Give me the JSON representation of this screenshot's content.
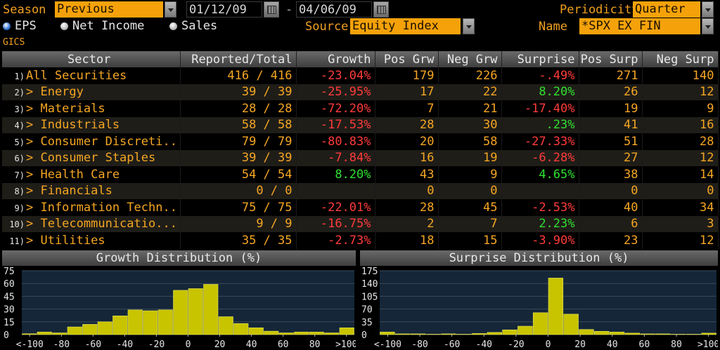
{
  "controls": {
    "season_label": "Season",
    "season_value": "Previous",
    "date_from": "01/12/09",
    "date_sep": "-",
    "date_to": "04/06/09",
    "periodicity_label": "Periodicity",
    "periodicity_value": "Quarter",
    "radio_eps": "EPS",
    "radio_net_income": "Net Income",
    "radio_sales": "Sales",
    "source_label": "Source",
    "source_value": "Equity Index",
    "name_label": "Name",
    "name_value": "*SPX EX FIN",
    "gics_label": "GICS"
  },
  "table": {
    "headers": [
      "Sector",
      "Reported/Total",
      "Growth",
      "Pos Grw",
      "Neg Grw",
      "Surprise",
      "Pos Surp",
      "Neg Surp"
    ],
    "rows": [
      {
        "n": "1)",
        "sector": "All Securities",
        "reported": "416 / 416",
        "growth": "-23.04%",
        "pos_grw": "179",
        "neg_grw": "226",
        "surprise": "-.49%",
        "pos_surp": "271",
        "neg_surp": "140"
      },
      {
        "n": "2)",
        "sector": "> Energy",
        "reported": "39 / 39",
        "growth": "-25.95%",
        "pos_grw": "17",
        "neg_grw": "22",
        "surprise": "8.20%",
        "pos_surp": "26",
        "neg_surp": "12"
      },
      {
        "n": "3)",
        "sector": "> Materials",
        "reported": "28 / 28",
        "growth": "-72.20%",
        "pos_grw": "7",
        "neg_grw": "21",
        "surprise": "-17.40%",
        "pos_surp": "19",
        "neg_surp": "9"
      },
      {
        "n": "4)",
        "sector": "> Industrials",
        "reported": "58 / 58",
        "growth": "-17.53%",
        "pos_grw": "28",
        "neg_grw": "30",
        "surprise": ".23%",
        "pos_surp": "41",
        "neg_surp": "16"
      },
      {
        "n": "5)",
        "sector": "> Consumer Discreti...",
        "reported": "79 / 79",
        "growth": "-80.83%",
        "pos_grw": "20",
        "neg_grw": "58",
        "surprise": "-27.33%",
        "pos_surp": "51",
        "neg_surp": "28"
      },
      {
        "n": "6)",
        "sector": "> Consumer Staples",
        "reported": "39 / 39",
        "growth": "-7.84%",
        "pos_grw": "16",
        "neg_grw": "19",
        "surprise": "-6.28%",
        "pos_surp": "27",
        "neg_surp": "12"
      },
      {
        "n": "7)",
        "sector": "> Health Care",
        "reported": "54 / 54",
        "growth": "8.20%",
        "pos_grw": "43",
        "neg_grw": "9",
        "surprise": "4.65%",
        "pos_surp": "38",
        "neg_surp": "14"
      },
      {
        "n": "8)",
        "sector": "> Financials",
        "reported": "0 / 0",
        "growth": "",
        "pos_grw": "0",
        "neg_grw": "0",
        "surprise": "",
        "pos_surp": "0",
        "neg_surp": "0"
      },
      {
        "n": "9)",
        "sector": "> Information Techn...",
        "reported": "75 / 75",
        "growth": "-22.01%",
        "pos_grw": "28",
        "neg_grw": "45",
        "surprise": "-2.53%",
        "pos_surp": "40",
        "neg_surp": "34"
      },
      {
        "n": "10)",
        "sector": "> Telecommunicatio...",
        "reported": "9 / 9",
        "growth": "-16.75%",
        "pos_grw": "2",
        "neg_grw": "7",
        "surprise": "2.23%",
        "pos_surp": "6",
        "neg_surp": "3"
      },
      {
        "n": "11)",
        "sector": "> Utilities",
        "reported": "35 / 35",
        "growth": "-2.73%",
        "pos_grw": "18",
        "neg_grw": "15",
        "surprise": "-3.90%",
        "pos_surp": "23",
        "neg_surp": "12"
      }
    ]
  },
  "colors": {
    "accent": "#f5a623",
    "negative": "#ff3b3b",
    "positive": "#30e030",
    "bar_fill": "#c8c400"
  },
  "chart_data": [
    {
      "type": "bar",
      "title": "Growth Distribution (%)",
      "ylim": [
        0,
        75
      ],
      "yticks": [
        "75",
        "60",
        "45",
        "30",
        "15",
        "0"
      ],
      "xticks": [
        "<-100",
        "-80",
        "-60",
        "-40",
        "-20",
        "0",
        "20",
        "40",
        "60",
        "80",
        ">100"
      ],
      "bins_x": [
        -105,
        -95,
        -85,
        -75,
        -65,
        -55,
        -45,
        -35,
        -25,
        -15,
        -5,
        5,
        15,
        25,
        35,
        45,
        55,
        65,
        75,
        85,
        95,
        105
      ],
      "values": [
        1,
        3,
        2,
        9,
        12,
        15,
        22,
        29,
        28,
        29,
        52,
        54,
        59,
        21,
        13,
        8,
        4,
        2,
        3,
        3,
        2,
        8
      ]
    },
    {
      "type": "bar",
      "title": "Surprise Distribution (%)",
      "ylim": [
        0,
        175
      ],
      "yticks": [
        "175",
        "140",
        "105",
        "70",
        "35",
        "0"
      ],
      "xticks": [
        "<-100",
        "-80",
        "-60",
        "-40",
        "-20",
        "0",
        "20",
        "40",
        "60",
        "80",
        ">100"
      ],
      "bins_x": [
        -105,
        -95,
        -85,
        -75,
        -65,
        -55,
        -45,
        -35,
        -25,
        -15,
        -5,
        5,
        15,
        25,
        35,
        45,
        55,
        65,
        75,
        85,
        95,
        105
      ],
      "values": [
        7,
        2,
        2,
        1,
        2,
        1,
        3,
        6,
        13,
        23,
        60,
        155,
        56,
        14,
        9,
        7,
        4,
        2,
        2,
        1,
        1,
        4
      ]
    }
  ]
}
